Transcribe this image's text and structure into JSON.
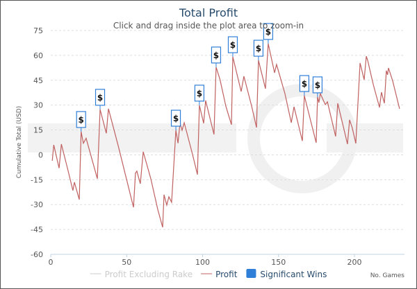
{
  "chart_data": {
    "type": "line",
    "title": "Total Profit",
    "subtitle": "Click and drag inside the plot area to zoom-in",
    "xlabel": "No. Games",
    "ylabel": "Cumulative Total (USD)",
    "xlim": [
      0,
      233
    ],
    "ylim": [
      -60,
      75
    ],
    "xticks": [
      0,
      50,
      100,
      150,
      200
    ],
    "yticks": [
      75,
      60,
      45,
      30,
      15,
      0,
      -15,
      -30,
      -45,
      -60
    ],
    "grid": true,
    "legend_position": "bottom",
    "watermark": "SHARKSCOPE",
    "series": [
      {
        "name": "Profit Excluding Rake",
        "color": "#c8c8c8",
        "visible": false,
        "points": []
      },
      {
        "name": "Profit",
        "color": "#c06060",
        "visible": true,
        "points": [
          [
            1,
            -3.6
          ],
          [
            2,
            6
          ],
          [
            5.5,
            -8
          ],
          [
            7,
            6.5
          ],
          [
            11,
            -8
          ],
          [
            14.6,
            -21.5
          ],
          [
            15.6,
            -16.5
          ],
          [
            18.8,
            -27
          ],
          [
            20,
            14
          ],
          [
            21.5,
            7
          ],
          [
            23.3,
            10
          ],
          [
            27.4,
            -3.5
          ],
          [
            30.7,
            -14.4
          ],
          [
            32.5,
            27.4
          ],
          [
            36.6,
            13
          ],
          [
            38,
            27.8
          ],
          [
            44.4,
            5.6
          ],
          [
            54.5,
            -31.6
          ],
          [
            55.8,
            -11
          ],
          [
            56.7,
            -9.8
          ],
          [
            59,
            -17.4
          ],
          [
            60.9,
            1.9
          ],
          [
            65.9,
            -14.4
          ],
          [
            70.5,
            -33
          ],
          [
            73.7,
            -43.7
          ],
          [
            74.6,
            -24
          ],
          [
            76.4,
            -30.3
          ],
          [
            77.8,
            -25.3
          ],
          [
            79.6,
            -28.6
          ],
          [
            82.4,
            14.8
          ],
          [
            83.8,
            7
          ],
          [
            85.1,
            19
          ],
          [
            86.5,
            14.8
          ],
          [
            87.9,
            19.4
          ],
          [
            93.4,
            0.2
          ],
          [
            96.6,
            -11.9
          ],
          [
            97.9,
            29.9
          ],
          [
            100.7,
            19
          ],
          [
            102,
            32.8
          ],
          [
            107.5,
            12.3
          ],
          [
            108.9,
            52.9
          ],
          [
            111.5,
            45.3
          ],
          [
            115.3,
            29.4
          ],
          [
            119,
            18.2
          ],
          [
            119.9,
            59.1
          ],
          [
            125.4,
            38.2
          ],
          [
            127.2,
            47.4
          ],
          [
            132.3,
            29.4
          ],
          [
            135.5,
            16.5
          ],
          [
            136.8,
            57
          ],
          [
            141.4,
            39.9
          ],
          [
            143.2,
            67.1
          ],
          [
            147.4,
            49.5
          ],
          [
            148.7,
            54.5
          ],
          [
            154.2,
            37
          ],
          [
            158.4,
            19.4
          ],
          [
            160.2,
            29
          ],
          [
            165.7,
            8.4
          ],
          [
            167,
            35.7
          ],
          [
            174.8,
            7.3
          ],
          [
            175.7,
            34.9
          ],
          [
            176.6,
            31.5
          ],
          [
            177.5,
            37
          ],
          [
            180.8,
            30.3
          ],
          [
            182.2,
            32
          ],
          [
            187.6,
            11.1
          ],
          [
            189,
            31.1
          ],
          [
            195.4,
            6.5
          ],
          [
            196.8,
            21.1
          ],
          [
            198.6,
            16.1
          ],
          [
            200.9,
            6.9
          ],
          [
            203.7,
            55.4
          ],
          [
            206.4,
            45.3
          ],
          [
            207.8,
            59.5
          ],
          [
            208.7,
            57
          ],
          [
            212.4,
            42.4
          ],
          [
            216.5,
            28.6
          ],
          [
            217.8,
            37.8
          ],
          [
            219.7,
            31.1
          ],
          [
            221,
            50.8
          ],
          [
            221.8,
            48.3
          ],
          [
            222.4,
            52.4
          ],
          [
            225.2,
            44.5
          ],
          [
            229.7,
            27.8
          ]
        ]
      },
      {
        "name": "Significant Wins",
        "color": "#2f7ed8",
        "marker": "$",
        "points": [
          [
            20,
            14
          ],
          [
            32.5,
            27.4
          ],
          [
            82.4,
            14.8
          ],
          [
            97.9,
            29.9
          ],
          [
            108.9,
            52.9
          ],
          [
            119.9,
            59.1
          ],
          [
            136.8,
            57
          ],
          [
            143.2,
            67.1
          ],
          [
            167,
            35.7
          ],
          [
            175.7,
            34.9
          ]
        ]
      }
    ]
  }
}
